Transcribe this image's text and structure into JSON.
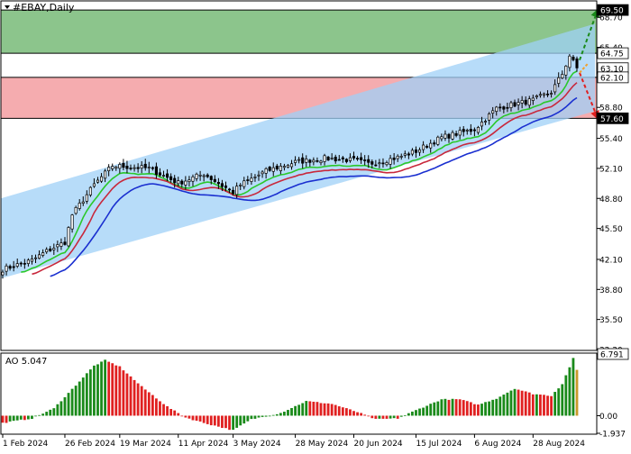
{
  "symbol": "#EBAY,Daily",
  "chart_data": {
    "type": "candlestick",
    "title": "#EBAY,Daily",
    "price_axis": {
      "ylim": [
        32.2,
        70.4
      ],
      "ticks": [
        "68.70",
        "65.40",
        "62.10",
        "58.80",
        "55.40",
        "52.10",
        "48.80",
        "45.50",
        "42.10",
        "38.80",
        "35.50",
        "32.20"
      ],
      "highlighted_labels": [
        {
          "value": 69.5,
          "text": "69.50",
          "bg": "#000000",
          "fg": "#ffffff"
        },
        {
          "value": 64.75,
          "text": "64.75",
          "bg": "#ffffff",
          "fg": "#000000"
        },
        {
          "value": 63.1,
          "text": "63.10",
          "bg": "#ffffff",
          "fg": "#000000"
        },
        {
          "value": 62.1,
          "text": "62.10",
          "bg": "#ffffff",
          "fg": "#000000"
        },
        {
          "value": 57.6,
          "text": "57.60",
          "bg": "#000000",
          "fg": "#ffffff"
        }
      ]
    },
    "date_axis": {
      "labels": [
        "1 Feb 2024",
        "26 Feb 2024",
        "19 Mar 2024",
        "11 Apr 2024",
        "3 May 2024",
        "28 May 2024",
        "20 Jun 2024",
        "15 Jul 2024",
        "6 Aug 2024",
        "28 Aug 2024"
      ],
      "label_bar_index": [
        0,
        17,
        32,
        48,
        63,
        80,
        96,
        113,
        129,
        145
      ],
      "bar_count": 158
    },
    "zones": [
      {
        "name": "buy-zone",
        "from": 64.75,
        "to": 69.5,
        "color": "#7fbf7f"
      },
      {
        "name": "sell-zone",
        "from": 57.6,
        "to": 62.1,
        "color": "#f4a3a6"
      }
    ],
    "channel": {
      "color": "#9fd0f7",
      "upper": [
        {
          "bar": 0,
          "price": 48.8
        },
        {
          "bar": 157,
          "price": 67.2
        }
      ],
      "lower": [
        {
          "bar": 0,
          "price": 40.0
        },
        {
          "bar": 157,
          "price": 57.6
        }
      ]
    },
    "ohlc_anchors": [
      {
        "bar": 0,
        "close": 41.0
      },
      {
        "bar": 8,
        "close": 42.0
      },
      {
        "bar": 12,
        "close": 43.0
      },
      {
        "bar": 17,
        "close": 44.0
      },
      {
        "bar": 19,
        "close": 47.0
      },
      {
        "bar": 25,
        "close": 50.3
      },
      {
        "bar": 30,
        "close": 52.4
      },
      {
        "bar": 40,
        "close": 52.1
      },
      {
        "bar": 48,
        "close": 50.5
      },
      {
        "bar": 55,
        "close": 51.5
      },
      {
        "bar": 60,
        "close": 50.2
      },
      {
        "bar": 63,
        "close": 49.5
      },
      {
        "bar": 65,
        "close": 50.3
      },
      {
        "bar": 72,
        "close": 51.8
      },
      {
        "bar": 80,
        "close": 52.8
      },
      {
        "bar": 88,
        "close": 53.2
      },
      {
        "bar": 96,
        "close": 53.0
      },
      {
        "bar": 100,
        "close": 52.6
      },
      {
        "bar": 108,
        "close": 53.3
      },
      {
        "bar": 113,
        "close": 54.0
      },
      {
        "bar": 120,
        "close": 55.5
      },
      {
        "bar": 129,
        "close": 56.4
      },
      {
        "bar": 135,
        "close": 58.7
      },
      {
        "bar": 145,
        "close": 59.6
      },
      {
        "bar": 150,
        "close": 60.5
      },
      {
        "bar": 153,
        "close": 62.5
      },
      {
        "bar": 155,
        "close": 64.5
      },
      {
        "bar": 157,
        "close": 63.1
      }
    ],
    "moving_averages": [
      {
        "name": "fast",
        "color": "#2bc82b",
        "period": 5
      },
      {
        "name": "medium",
        "color": "#c8283c",
        "period": 8
      },
      {
        "name": "slow",
        "color": "#1a2fd0",
        "period": 13
      }
    ],
    "forecast_arrows": [
      {
        "name": "up-arrow",
        "color": "#1a8a1a",
        "from_price": 64.0,
        "to_price": 69.5
      },
      {
        "name": "down-arrow",
        "color": "#e02020",
        "from_price": 62.6,
        "to_price": 57.6
      }
    ],
    "oscillator": {
      "name": "AO",
      "label": "AO 5.047",
      "ylim": [
        -1.937,
        6.791
      ],
      "ticks": [
        "6.791",
        "0.00",
        "-1.937"
      ],
      "highlighted_label": {
        "value": 6.791,
        "text": "6.791"
      },
      "up_color": "#1a8a1a",
      "down_color": "#e02020",
      "last_bar_color": "#c89a2a",
      "anchors": [
        {
          "bar": 0,
          "value": -0.8
        },
        {
          "bar": 8,
          "value": -0.3
        },
        {
          "bar": 14,
          "value": 0.8
        },
        {
          "bar": 18,
          "value": 2.5
        },
        {
          "bar": 25,
          "value": 5.5
        },
        {
          "bar": 28,
          "value": 6.1
        },
        {
          "bar": 32,
          "value": 5.4
        },
        {
          "bar": 38,
          "value": 3.2
        },
        {
          "bar": 45,
          "value": 1.0
        },
        {
          "bar": 50,
          "value": -0.2
        },
        {
          "bar": 55,
          "value": -0.8
        },
        {
          "bar": 63,
          "value": -1.6
        },
        {
          "bar": 68,
          "value": -0.4
        },
        {
          "bar": 76,
          "value": 0.3
        },
        {
          "bar": 83,
          "value": 1.6
        },
        {
          "bar": 90,
          "value": 1.3
        },
        {
          "bar": 97,
          "value": 0.4
        },
        {
          "bar": 102,
          "value": -0.4
        },
        {
          "bar": 108,
          "value": -0.3
        },
        {
          "bar": 113,
          "value": 0.6
        },
        {
          "bar": 120,
          "value": 1.8
        },
        {
          "bar": 125,
          "value": 1.8
        },
        {
          "bar": 130,
          "value": 1.2
        },
        {
          "bar": 135,
          "value": 1.9
        },
        {
          "bar": 140,
          "value": 3.0
        },
        {
          "bar": 145,
          "value": 2.4
        },
        {
          "bar": 150,
          "value": 2.2
        },
        {
          "bar": 153,
          "value": 3.5
        },
        {
          "bar": 156,
          "value": 6.3
        },
        {
          "bar": 157,
          "value": 5.0
        }
      ]
    }
  },
  "colors": {
    "background": "#ffffff",
    "frame": "#000000",
    "grid": "#000000",
    "candle_up": "#ffffff",
    "candle_down": "#000000"
  }
}
